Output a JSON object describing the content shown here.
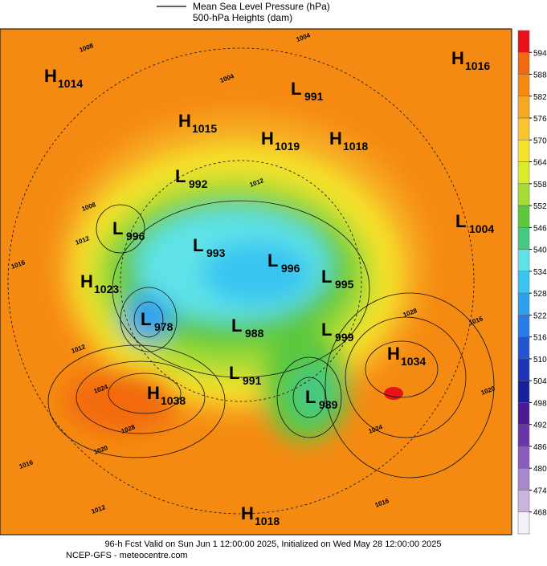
{
  "legend": {
    "line1": "Mean Sea Level Pressure (hPa)",
    "line2": "500-hPa Heights (dam)"
  },
  "colorbar": {
    "ticks": [
      594,
      588,
      582,
      576,
      570,
      564,
      558,
      552,
      546,
      540,
      534,
      528,
      522,
      516,
      510,
      504,
      498,
      492,
      486,
      480,
      474,
      468
    ],
    "colors": [
      "#e8121a",
      "#f26a10",
      "#f58a12",
      "#f7a823",
      "#f9c531",
      "#f5e22a",
      "#d8ec2a",
      "#a7dc36",
      "#5cc83c",
      "#45c982",
      "#5fe3e8",
      "#39c5f0",
      "#2f9ff0",
      "#2c7ce8",
      "#2554d2",
      "#1d34b8",
      "#16209a",
      "#4b1a92",
      "#6a35a8",
      "#8a5cbc",
      "#a888cc",
      "#c8b4de",
      "#f4f0f8"
    ]
  },
  "systems": [
    {
      "kind": "H",
      "value": 1014
    },
    {
      "kind": "H",
      "value": 1016
    },
    {
      "kind": "L",
      "value": 991
    },
    {
      "kind": "H",
      "value": 1015
    },
    {
      "kind": "H",
      "value": 1019
    },
    {
      "kind": "H",
      "value": 1018
    },
    {
      "kind": "L",
      "value": 992
    },
    {
      "kind": "L",
      "value": 996
    },
    {
      "kind": "L",
      "value": 1004
    },
    {
      "kind": "L",
      "value": 993
    },
    {
      "kind": "L",
      "value": 996
    },
    {
      "kind": "L",
      "value": 995
    },
    {
      "kind": "H",
      "value": 1023
    },
    {
      "kind": "L",
      "value": 978
    },
    {
      "kind": "L",
      "value": 988
    },
    {
      "kind": "L",
      "value": 999
    },
    {
      "kind": "H",
      "value": 1034
    },
    {
      "kind": "L",
      "value": 991
    },
    {
      "kind": "H",
      "value": 1038
    },
    {
      "kind": "L",
      "value": 989
    },
    {
      "kind": "H",
      "value": 1018
    }
  ],
  "isobar_labels": [
    1004,
    1008,
    1004,
    1012,
    1008,
    1012,
    1016,
    1012,
    1024,
    1028,
    1020,
    1016,
    1012,
    1028,
    1016,
    1024,
    1020,
    1016
  ],
  "footer": {
    "line1": "96-h Fcst Valid on Sun Jun  1 12:00:00 2025, Initialized on Wed May 28 12:00:00 2025",
    "line2": "NCEP-GFS  - meteocentre.com"
  }
}
